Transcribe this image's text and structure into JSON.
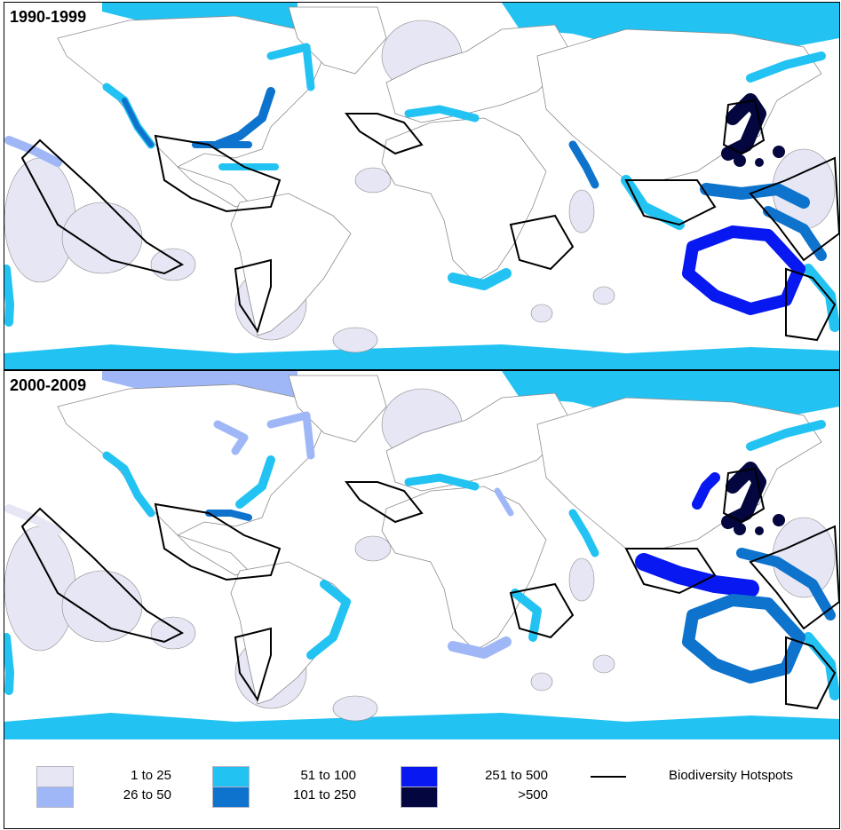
{
  "panels": [
    {
      "title": "1990-1999"
    },
    {
      "title": "2000-2009"
    }
  ],
  "legend": {
    "classes": [
      {
        "label": "1 to 25",
        "color": "#e6e6f5"
      },
      {
        "label": "26 to 50",
        "color": "#9fb7f7"
      },
      {
        "label": "51 to 100",
        "color": "#22c3f2"
      },
      {
        "label": "101 to 250",
        "color": "#0d73cc"
      },
      {
        "label": "251 to 500",
        "color": "#0718f0"
      },
      {
        "label": ">500",
        "color": "#03063f"
      }
    ],
    "hotspots_label": "Biodiversity Hotspots"
  },
  "colors": {
    "land": "#ffffff",
    "outline": "#8c8c8c",
    "hotspot": "#000000"
  }
}
